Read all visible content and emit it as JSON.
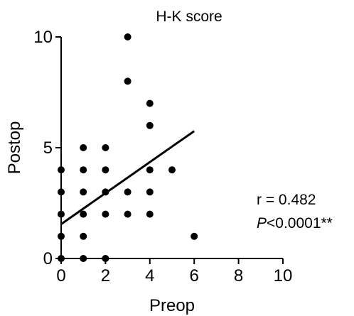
{
  "chart_data": {
    "type": "scatter",
    "title": "H-K score",
    "xlabel": "Preop",
    "ylabel": "Postop",
    "xlim": [
      0,
      10
    ],
    "ylim": [
      0,
      10
    ],
    "xticks": [
      0,
      2,
      4,
      6,
      8,
      10
    ],
    "yticks": [
      0,
      5,
      10
    ],
    "grid": false,
    "points": [
      {
        "x": 0,
        "y": 0
      },
      {
        "x": 0,
        "y": 1
      },
      {
        "x": 0,
        "y": 2
      },
      {
        "x": 0,
        "y": 3
      },
      {
        "x": 0,
        "y": 4
      },
      {
        "x": 1,
        "y": 0
      },
      {
        "x": 1,
        "y": 1
      },
      {
        "x": 1,
        "y": 2
      },
      {
        "x": 1,
        "y": 3
      },
      {
        "x": 1,
        "y": 4
      },
      {
        "x": 1,
        "y": 5
      },
      {
        "x": 2,
        "y": 0
      },
      {
        "x": 2,
        "y": 2
      },
      {
        "x": 2,
        "y": 3
      },
      {
        "x": 2,
        "y": 4
      },
      {
        "x": 2,
        "y": 5
      },
      {
        "x": 3,
        "y": 2
      },
      {
        "x": 3,
        "y": 3
      },
      {
        "x": 3,
        "y": 8
      },
      {
        "x": 3,
        "y": 10
      },
      {
        "x": 4,
        "y": 2
      },
      {
        "x": 4,
        "y": 3
      },
      {
        "x": 4,
        "y": 4
      },
      {
        "x": 4,
        "y": 6
      },
      {
        "x": 4,
        "y": 7
      },
      {
        "x": 5,
        "y": 4
      },
      {
        "x": 6,
        "y": 1
      }
    ],
    "regression_line": {
      "x1": 0,
      "y1": 1.55,
      "x2": 6,
      "y2": 5.75
    },
    "annotation": {
      "r_text": "r = 0.482",
      "p_symbol": "P",
      "p_text": "<0.0001**"
    },
    "colors": {
      "points": "#000000",
      "line": "#000000",
      "axes": "#000000"
    }
  }
}
